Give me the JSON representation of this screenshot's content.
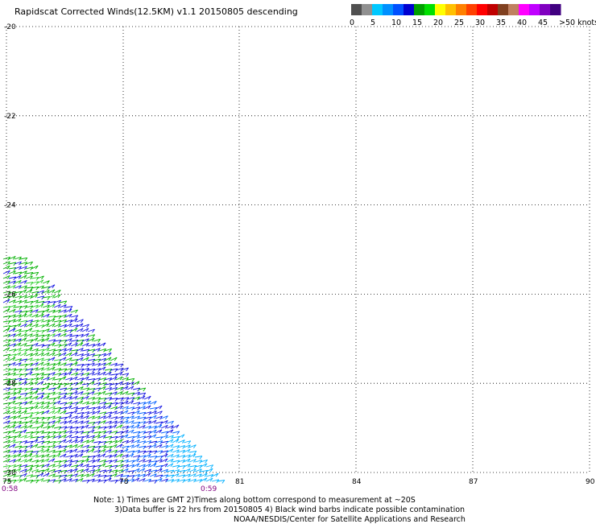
{
  "title": "Rapidscat Corrected Winds(12.5KM) v1.1 20150805 descending",
  "colorbar": {
    "segments": [
      "#505050",
      "#909090",
      "#00c8ff",
      "#0090ff",
      "#0050ff",
      "#0000d0",
      "#00a000",
      "#00e000",
      "#ffff00",
      "#ffc000",
      "#ff8000",
      "#ff4000",
      "#ff0000",
      "#c00000",
      "#804020",
      "#c08060",
      "#ff00ff",
      "#c000ff",
      "#8000c0",
      "#400080"
    ],
    "labels": [
      "0",
      "5",
      "10",
      "15",
      "20",
      "25",
      "30",
      "35",
      "40",
      "45",
      ">50 knots"
    ]
  },
  "axes": {
    "y_ticks": [
      "-20",
      "-22",
      "-24",
      "-26",
      "-28",
      "-30"
    ],
    "x_ticks": [
      "75",
      "78",
      "81",
      "84",
      "87",
      "90"
    ]
  },
  "time_labels": {
    "left": "0:58",
    "right": "0:59"
  },
  "notes": {
    "line1": "Note: 1) Times are GMT 2)Times along bottom correspond to measurement at ~20S",
    "line2": "3)Data buffer is 22 hrs from 20150805 4) Black wind barbs indicate possible contamination",
    "line3": "NOAA/NESDIS/Center for Satellite Applications and Research"
  },
  "wind_colors": [
    "#00b000",
    "#1010e0",
    "#0060ff",
    "#00b0ff",
    "#30d030"
  ]
}
